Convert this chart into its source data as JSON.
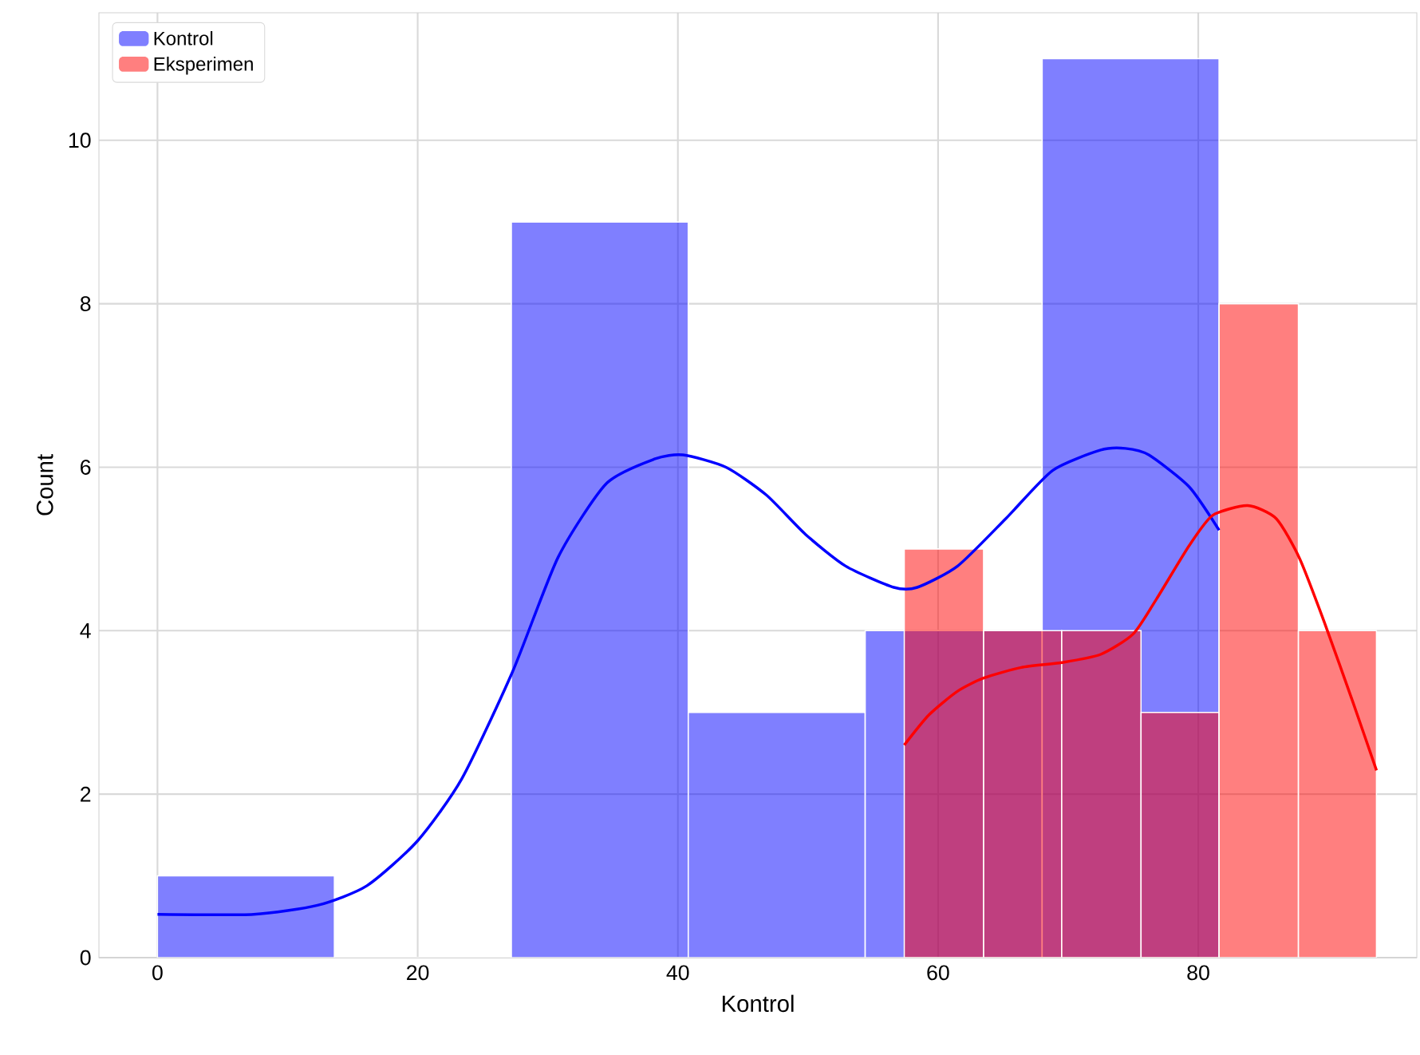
{
  "chart_data": {
    "type": "histogram",
    "xlabel": "Kontrol",
    "ylabel": "Count",
    "xlim": [
      -4.5,
      96.8
    ],
    "ylim": [
      0,
      11.56
    ],
    "xticks": [
      0,
      20,
      40,
      60,
      80
    ],
    "yticks": [
      0,
      2,
      4,
      6,
      8,
      10
    ],
    "grid": true,
    "legend": "top left",
    "series": [
      {
        "name": "Kontrol",
        "color": "#0000ff",
        "bins": [
          0,
          13.6,
          27.2,
          40.8,
          54.4,
          68.0,
          81.6
        ],
        "values": [
          1,
          0,
          9,
          3,
          4,
          11
        ]
      },
      {
        "name": "Eksperimen",
        "color": "#ff0000",
        "bins": [
          57.4,
          63.5,
          69.5,
          75.6,
          81.6,
          87.7,
          93.7
        ],
        "values": [
          5,
          4,
          4,
          3,
          8,
          4
        ]
      },
      {
        "type": "line",
        "color": "#0000ff",
        "x": [
          0,
          7.4,
          12.3,
          16.1,
          20,
          23.4,
          27.3,
          30.8,
          34.5,
          38.2,
          40.4,
          43.7,
          46.8,
          49.8,
          52.9,
          56.6,
          58.4,
          61.5,
          65.2,
          68.8,
          72.5,
          74.4,
          76.2,
          79.3,
          81.6
        ],
        "values": [
          0.53,
          0.53,
          0.64,
          0.88,
          1.43,
          2.19,
          3.5,
          4.9,
          5.8,
          6.1,
          6.15,
          6.0,
          5.66,
          5.18,
          4.79,
          4.53,
          4.53,
          4.79,
          5.37,
          5.96,
          6.21,
          6.23,
          6.15,
          5.76,
          5.23
        ]
      },
      {
        "type": "line",
        "color": "#ff0000",
        "x": [
          57.4,
          59.3,
          61.5,
          63.5,
          66.4,
          69.5,
          72.5,
          75.0,
          76.8,
          79.3,
          81.1,
          83.8,
          86.0,
          87.8,
          89.7,
          91.9,
          93.7
        ],
        "values": [
          2.6,
          2.97,
          3.26,
          3.42,
          3.55,
          3.61,
          3.71,
          3.96,
          4.39,
          5.04,
          5.41,
          5.53,
          5.37,
          4.88,
          4.1,
          3.12,
          2.29
        ]
      }
    ]
  }
}
